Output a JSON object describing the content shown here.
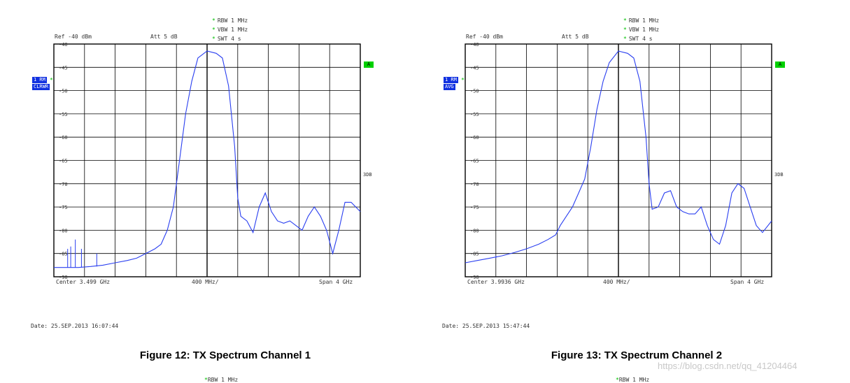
{
  "panels": [
    {
      "settings": [
        "RBW 1 MHz",
        "VBW 1 MHz",
        "SWT 4 s"
      ],
      "ref_label": "Ref -40 dBm",
      "att_label": "Att  5 dB",
      "trace_tag1": "1 RM",
      "trace_tag2": "CLRWR",
      "marker_a": "A",
      "side_3db": "3DB",
      "center_label": "Center  3.499 GHz",
      "div_label": "400 MHz/",
      "span_label": "Span  4 GHz",
      "date": "Date: 25.SEP.2013  16:07:44",
      "caption": "Figure 12: TX Spectrum Channel 1",
      "cut_text": "RBW 1 MHz"
    },
    {
      "settings": [
        "RBW 1 MHz",
        "VBW 1 MHz",
        "SWT 4 s"
      ],
      "ref_label": "Ref -40 dBm",
      "att_label": "Att  5 dB",
      "trace_tag1": "1 RM",
      "trace_tag2": "AVG",
      "marker_a": "A",
      "side_3db": "3DB",
      "center_label": "Center  3.9936 GHz",
      "div_label": "400 MHz/",
      "span_label": "Span  4 GHz",
      "date": "Date: 25.SEP.2013  15:47:44",
      "caption": "Figure 13: TX Spectrum Channel 2",
      "cut_text": "RBW 1 MHz"
    }
  ],
  "watermark": "https://blog.csdn.net/qq_41204464",
  "colors": {
    "trace": "#2a3ff0",
    "grid": "#000000",
    "tag": "#1030e0",
    "marker": "#00d000"
  },
  "chart_data": [
    {
      "type": "line",
      "title": "Figure 12: TX Spectrum Channel 1",
      "xlabel": "",
      "ylabel": "",
      "xlim": [
        -5,
        5
      ],
      "ylim": [
        -90,
        -40
      ],
      "y_ticks": [
        -40,
        -45,
        -50,
        -55,
        -60,
        -65,
        -70,
        -75,
        -80,
        -85,
        -90
      ],
      "grid": true,
      "x": [
        -5,
        -4.6,
        -4.2,
        -3.8,
        -3.4,
        -3,
        -2.6,
        -2.3,
        -2,
        -1.7,
        -1.5,
        -1.3,
        -1.1,
        -0.9,
        -0.7,
        -0.5,
        -0.3,
        0,
        0.3,
        0.5,
        0.7,
        0.9,
        1,
        1.1,
        1.3,
        1.5,
        1.7,
        1.9,
        2.1,
        2.3,
        2.5,
        2.7,
        2.9,
        3.1,
        3.3,
        3.5,
        3.7,
        3.9,
        4.1,
        4.3,
        4.5,
        4.7,
        5
      ],
      "y": [
        -88,
        -88,
        -88,
        -87.8,
        -87.5,
        -87,
        -86.5,
        -86,
        -85,
        -84,
        -83,
        -80,
        -75,
        -65,
        -55,
        -48,
        -43,
        -41.5,
        -42,
        -43,
        -49,
        -62,
        -73,
        -77,
        -78,
        -80.5,
        -75,
        -72,
        -76,
        -78,
        -78.5,
        -78,
        -79,
        -80,
        -77,
        -75,
        -77,
        -80,
        -85,
        -80,
        -74,
        -74,
        -76
      ],
      "spikes": [
        {
          "x": -4.55,
          "y": -84
        },
        {
          "x": -4.45,
          "y": -83.5
        },
        {
          "x": -4.3,
          "y": -82
        },
        {
          "x": -4.1,
          "y": -84
        },
        {
          "x": -3.6,
          "y": -85
        }
      ]
    },
    {
      "type": "line",
      "title": "Figure 13: TX Spectrum Channel 2",
      "xlabel": "",
      "ylabel": "",
      "xlim": [
        -5,
        5
      ],
      "ylim": [
        -90,
        -40
      ],
      "y_ticks": [
        -40,
        -45,
        -50,
        -55,
        -60,
        -65,
        -70,
        -75,
        -80,
        -85,
        -90
      ],
      "grid": true,
      "x": [
        -5,
        -4.6,
        -4.2,
        -3.8,
        -3.4,
        -3,
        -2.6,
        -2.3,
        -2.05,
        -1.9,
        -1.7,
        -1.5,
        -1.3,
        -1.1,
        -0.9,
        -0.7,
        -0.5,
        -0.3,
        0,
        0.3,
        0.5,
        0.7,
        0.9,
        1,
        1.1,
        1.3,
        1.5,
        1.7,
        1.9,
        2.1,
        2.3,
        2.5,
        2.7,
        2.9,
        3.1,
        3.3,
        3.5,
        3.7,
        3.9,
        4.1,
        4.3,
        4.5,
        4.7,
        5
      ],
      "y": [
        -87,
        -86.5,
        -86,
        -85.5,
        -84.8,
        -84,
        -83,
        -82,
        -81,
        -79,
        -77,
        -75,
        -72,
        -69,
        -62,
        -54,
        -48,
        -44,
        -41.5,
        -42,
        -43,
        -48,
        -60,
        -70,
        -75.5,
        -75,
        -72,
        -71.5,
        -75,
        -76,
        -76.5,
        -76.5,
        -75,
        -79,
        -82,
        -83,
        -79,
        -72,
        -70,
        -71,
        -75,
        -79,
        -80.5,
        -78
      ],
      "spikes": [
        {
          "x": -4.0,
          "y": -85.5
        }
      ]
    }
  ]
}
